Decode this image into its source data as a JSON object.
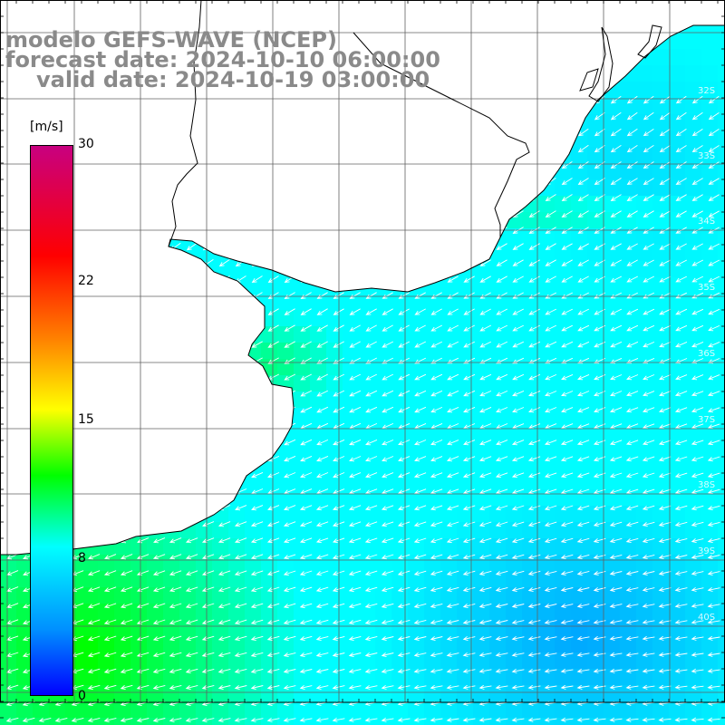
{
  "title": {
    "line1": "modelo GEFS-WAVE (NCEP)",
    "line2": "forecast date: 2024-10-10 06:00:00",
    "line3": "valid date: 2024-10-19 03:00:00"
  },
  "colorbar": {
    "unit": "[m/s]",
    "ticks": [
      "30",
      "22",
      "15",
      "8",
      "0"
    ],
    "tick_values": [
      30,
      22,
      15,
      8,
      0
    ],
    "range": [
      0,
      30
    ],
    "colors": [
      "#0000ff",
      "#0090ff",
      "#00ffff",
      "#00ff00",
      "#ffff00",
      "#ff8000",
      "#ff0000",
      "#c80080"
    ]
  },
  "map": {
    "variable": "wind speed and direction",
    "lat_labels": [
      "32S",
      "33S",
      "34S",
      "35S",
      "36S",
      "37S",
      "38S",
      "39S",
      "40S"
    ],
    "ocean_color": "#00b4ff",
    "land_color": "#ffffff",
    "grid_color": "#606060",
    "coast_color": "#000000",
    "arrow_color": "#ffffff"
  }
}
